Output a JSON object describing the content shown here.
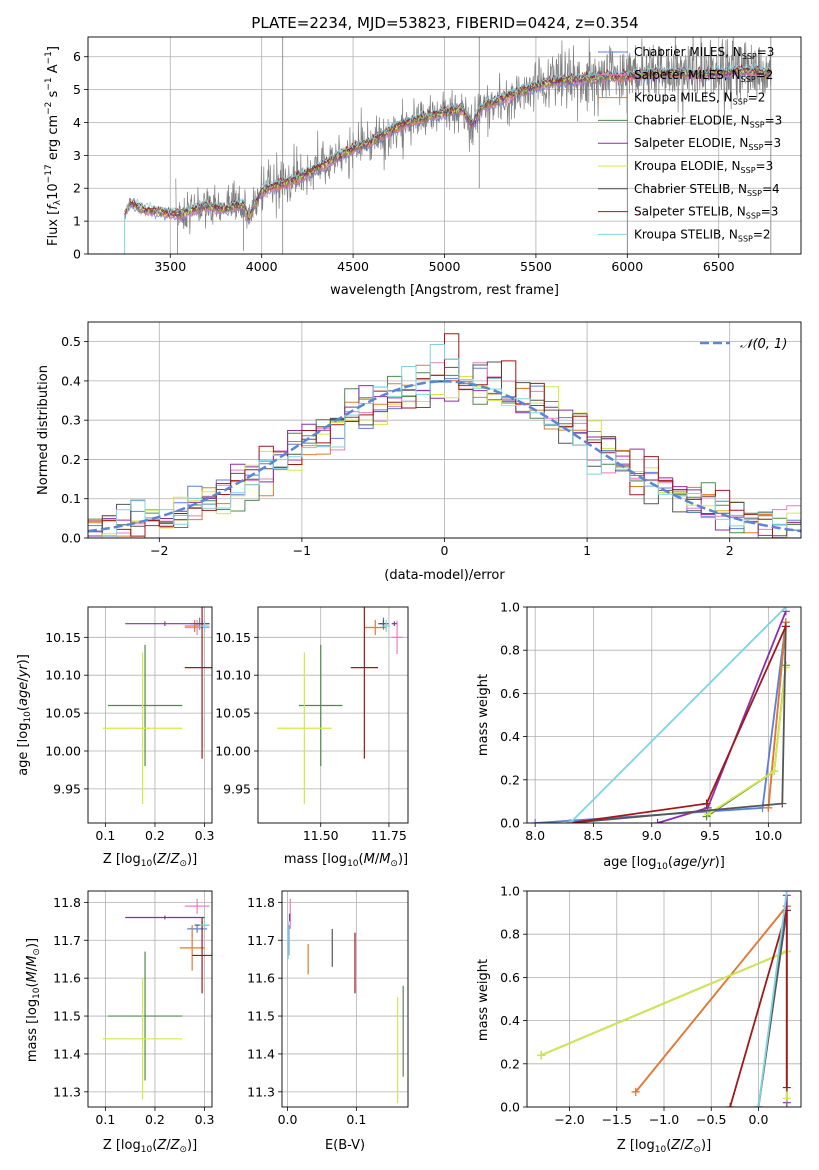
{
  "title": "PLATE=2234, MJD=53823, FIBERID=0424, z=0.354",
  "colors": {
    "Chabrier MILES": "#5b7fd6",
    "Salpeter MILES": "#e87fc4",
    "Kroupa MILES": "#e07b2e",
    "Chabrier ELODIE": "#4f8a4f",
    "Salpeter ELODIE": "#8b2fa8",
    "Kroupa ELODIE": "#d4e84a",
    "Chabrier STELIB": "#555555",
    "Salpeter STELIB": "#a01818",
    "Kroupa STELIB": "#7fd4e0",
    "data": "#7f7f7f",
    "gaussian": "#5b86d6",
    "grid": "#b0b0b0"
  },
  "chart_data": [
    {
      "id": "spectrum",
      "type": "line",
      "xlabel": "wavelength [Angstrom, rest frame]",
      "ylabel": "Flux [f_λ 10^-17 erg cm^-2 s^-1 A^-1]",
      "xlim": [
        3050,
        6950
      ],
      "ylim": [
        0,
        6.6
      ],
      "xticks": [
        3500,
        4000,
        4500,
        5000,
        5500,
        6000,
        6500
      ],
      "yticks": [
        0,
        1,
        2,
        3,
        4,
        5,
        6
      ],
      "legend_loc": "right",
      "legend": [
        {
          "model": "Chabrier MILES",
          "label": "Chabrier MILES, N",
          "n": 3
        },
        {
          "model": "Salpeter MILES",
          "label": "Salpeter MILES, N",
          "n": 2
        },
        {
          "model": "Kroupa MILES",
          "label": "Kroupa MILES, N",
          "n": 2
        },
        {
          "model": "Chabrier ELODIE",
          "label": "Chabrier ELODIE, N",
          "n": 3
        },
        {
          "model": "Salpeter ELODIE",
          "label": "Salpeter ELODIE, N",
          "n": 3
        },
        {
          "model": "Kroupa ELODIE",
          "label": "Kroupa ELODIE, N",
          "n": 3
        },
        {
          "model": "Chabrier STELIB",
          "label": "Chabrier STELIB, N",
          "n": 4
        },
        {
          "model": "Salpeter STELIB",
          "label": "Salpeter STELIB, N",
          "n": 3
        },
        {
          "model": "Kroupa STELIB",
          "label": "Kroupa STELIB, N",
          "n": 2
        }
      ],
      "model_continuum": {
        "x": [
          3250,
          3280,
          3320,
          3360,
          3420,
          3480,
          3540,
          3600,
          3650,
          3700,
          3750,
          3800,
          3850,
          3900,
          3930,
          3970,
          4000,
          4050,
          4100,
          4150,
          4200,
          4300,
          4400,
          4500,
          4600,
          4700,
          4800,
          4900,
          5000,
          5100,
          5150,
          5200,
          5300,
          5400,
          5500,
          5600,
          5700,
          5800,
          5900,
          6000,
          6100,
          6200,
          6300,
          6400,
          6500,
          6600,
          6700,
          6780
        ],
        "y": [
          1.2,
          1.55,
          1.45,
          1.35,
          1.3,
          1.25,
          1.2,
          1.3,
          1.4,
          1.45,
          1.4,
          1.35,
          1.45,
          1.5,
          1.1,
          1.6,
          1.9,
          2.05,
          2.1,
          2.2,
          2.3,
          2.6,
          2.9,
          3.2,
          3.4,
          3.75,
          4.0,
          4.15,
          4.3,
          4.4,
          3.9,
          4.45,
          4.7,
          4.9,
          5.1,
          5.25,
          5.3,
          5.35,
          5.4,
          5.4,
          5.45,
          5.5,
          5.5,
          5.45,
          5.5,
          5.55,
          5.55,
          5.5
        ]
      },
      "data_range": [
        3530,
        6790
      ]
    },
    {
      "id": "residuals",
      "type": "histogram",
      "xlabel": "(data-model)/error",
      "ylabel": "Normed distribution",
      "xlim": [
        -2.5,
        2.5
      ],
      "ylim": [
        0,
        0.55
      ],
      "xticks": [
        -2,
        -1,
        0,
        1,
        2
      ],
      "yticks": [
        0.0,
        0.1,
        0.2,
        0.3,
        0.4,
        0.5
      ],
      "legend_loc": "top-right",
      "legend_label": "𝒩(0, 1)",
      "bin_width": 0.1
    },
    {
      "id": "age-vs-Z",
      "type": "errorbar",
      "xlabel": "Z [log10(Z/Z⊙)]",
      "ylabel": "age [log10(age/yr)]",
      "xlim": [
        0.065,
        0.315
      ],
      "ylim": [
        9.905,
        10.19
      ],
      "xticks": [
        0.1,
        0.2,
        0.3
      ],
      "yticks": [
        9.95,
        10.0,
        10.05,
        10.1,
        10.15
      ],
      "points": [
        {
          "model": "Chabrier MILES",
          "x": 0.29,
          "xerr": 0.02,
          "y": 10.168,
          "yerr": 0.008
        },
        {
          "model": "Salpeter MILES",
          "x": 0.285,
          "xerr": 0.025,
          "y": 10.163,
          "yerr": 0.01
        },
        {
          "model": "Kroupa MILES",
          "x": 0.28,
          "xerr": 0.02,
          "y": 10.165,
          "yerr": 0.008
        },
        {
          "model": "Chabrier ELODIE",
          "x": 0.18,
          "xerr": 0.075,
          "y": 10.06,
          "yerr": 0.08
        },
        {
          "model": "Salpeter ELODIE",
          "x": 0.22,
          "xerr": 0.08,
          "y": 10.168,
          "yerr": 0.003
        },
        {
          "model": "Kroupa ELODIE",
          "x": 0.175,
          "xerr": 0.08,
          "y": 10.03,
          "yerr": 0.1
        },
        {
          "model": "Chabrier STELIB",
          "x": 0.295,
          "xerr": 0.015,
          "y": 10.168,
          "yerr": 0.005
        },
        {
          "model": "Salpeter STELIB",
          "x": 0.295,
          "xerr": 0.035,
          "y": 10.11,
          "yerr": 0.12
        },
        {
          "model": "Kroupa STELIB",
          "x": 0.3,
          "xerr": 0.01,
          "y": 10.165,
          "yerr": 0.008
        }
      ]
    },
    {
      "id": "age-vs-mass",
      "type": "errorbar",
      "xlabel": "mass [log10(M/M⊙)]",
      "ylabel": "",
      "xlim": [
        11.27,
        11.82
      ],
      "ylim": [
        9.905,
        10.19
      ],
      "xticks": [
        11.5,
        11.75
      ],
      "yticks": [
        9.95,
        10.0,
        10.05,
        10.1,
        10.15
      ],
      "points": [
        {
          "model": "Chabrier MILES",
          "x": 11.73,
          "xerr": 0.02,
          "y": 10.168,
          "yerr": 0.008
        },
        {
          "model": "Salpeter MILES",
          "x": 11.78,
          "xerr": 0.02,
          "y": 10.15,
          "yerr": 0.022
        },
        {
          "model": "Kroupa MILES",
          "x": 11.7,
          "xerr": 0.04,
          "y": 10.163,
          "yerr": 0.01
        },
        {
          "model": "Chabrier ELODIE",
          "x": 11.5,
          "xerr": 0.08,
          "y": 10.06,
          "yerr": 0.08
        },
        {
          "model": "Salpeter ELODIE",
          "x": 11.77,
          "xerr": 0.01,
          "y": 10.168,
          "yerr": 0.003
        },
        {
          "model": "Kroupa ELODIE",
          "x": 11.44,
          "xerr": 0.1,
          "y": 10.03,
          "yerr": 0.1
        },
        {
          "model": "Chabrier STELIB",
          "x": 11.73,
          "xerr": 0.015,
          "y": 10.168,
          "yerr": 0.005
        },
        {
          "model": "Salpeter STELIB",
          "x": 11.66,
          "xerr": 0.05,
          "y": 10.11,
          "yerr": 0.12
        },
        {
          "model": "Kroupa STELIB",
          "x": 11.74,
          "xerr": 0.015,
          "y": 10.165,
          "yerr": 0.008
        }
      ]
    },
    {
      "id": "weight-vs-age",
      "type": "line",
      "xlabel": "age [log10(age/yr)]",
      "ylabel": "mass weight",
      "xlim": [
        7.93,
        10.28
      ],
      "ylim": [
        0,
        1
      ],
      "xticks": [
        8.0,
        8.5,
        9.0,
        9.5,
        10.0
      ],
      "yticks": [
        0.0,
        0.2,
        0.4,
        0.6,
        0.8,
        1.0
      ],
      "series": [
        {
          "model": "Chabrier MILES",
          "x": [
            8.0,
            9.95,
            10.15
          ],
          "y": [
            0.0,
            0.07,
            0.93
          ]
        },
        {
          "model": "Salpeter MILES",
          "x": [
            10.0,
            10.15
          ],
          "y": [
            0.07,
            0.93
          ]
        },
        {
          "model": "Kroupa MILES",
          "x": [
            10.0,
            10.15
          ],
          "y": [
            0.07,
            0.93
          ]
        },
        {
          "model": "Chabrier ELODIE",
          "x": [
            9.47,
            10.05,
            10.15
          ],
          "y": [
            0.03,
            0.24,
            0.73
          ]
        },
        {
          "model": "Salpeter ELODIE",
          "x": [
            9.05,
            9.48,
            10.15
          ],
          "y": [
            0.0,
            0.07,
            0.98
          ]
        },
        {
          "model": "Kroupa ELODIE",
          "x": [
            9.48,
            10.05,
            10.15
          ],
          "y": [
            0.04,
            0.24,
            0.72
          ]
        },
        {
          "model": "Chabrier STELIB",
          "x": [
            8.3,
            10.12,
            10.15
          ],
          "y": [
            0.0,
            0.09,
            0.91
          ]
        },
        {
          "model": "Salpeter STELIB",
          "x": [
            8.3,
            9.47,
            10.15
          ],
          "y": [
            0.0,
            0.09,
            0.91
          ]
        },
        {
          "model": "Kroupa STELIB",
          "x": [
            8.3,
            10.15
          ],
          "y": [
            0.0,
            1.0
          ]
        }
      ]
    },
    {
      "id": "mass-vs-Z",
      "type": "errorbar",
      "xlabel": "Z [log10(Z/Z⊙)]",
      "ylabel": "mass [log10(M/M⊙)]",
      "xlim": [
        0.065,
        0.315
      ],
      "ylim": [
        11.26,
        11.83
      ],
      "xticks": [
        0.1,
        0.2,
        0.3
      ],
      "yticks": [
        11.3,
        11.4,
        11.5,
        11.6,
        11.7,
        11.8
      ],
      "points": [
        {
          "model": "Chabrier MILES",
          "x": 0.285,
          "xerr": 0.02,
          "y": 11.73,
          "yerr": 0.01
        },
        {
          "model": "Salpeter MILES",
          "x": 0.285,
          "xerr": 0.025,
          "y": 11.79,
          "yerr": 0.02
        },
        {
          "model": "Kroupa MILES",
          "x": 0.275,
          "xerr": 0.025,
          "y": 11.68,
          "yerr": 0.06
        },
        {
          "model": "Chabrier ELODIE",
          "x": 0.18,
          "xerr": 0.075,
          "y": 11.5,
          "yerr": 0.17
        },
        {
          "model": "Salpeter ELODIE",
          "x": 0.22,
          "xerr": 0.08,
          "y": 11.76,
          "yerr": 0.005
        },
        {
          "model": "Kroupa ELODIE",
          "x": 0.175,
          "xerr": 0.08,
          "y": 11.44,
          "yerr": 0.16
        },
        {
          "model": "Chabrier STELIB",
          "x": 0.295,
          "xerr": 0.015,
          "y": 11.74,
          "yerr": 0.01
        },
        {
          "model": "Salpeter STELIB",
          "x": 0.295,
          "xerr": 0.02,
          "y": 11.66,
          "yerr": 0.1
        },
        {
          "model": "Kroupa STELIB",
          "x": 0.3,
          "xerr": 0.01,
          "y": 11.74,
          "yerr": 0.01
        }
      ]
    },
    {
      "id": "mass-vs-EBV",
      "type": "errorbar",
      "xlabel": "E(B-V)",
      "ylabel": "",
      "xlim": [
        -0.008,
        0.175
      ],
      "ylim": [
        11.26,
        11.83
      ],
      "xticks": [
        0.0,
        0.1
      ],
      "yticks": [
        11.3,
        11.4,
        11.5,
        11.6,
        11.7,
        11.8
      ],
      "points": [
        {
          "model": "Chabrier MILES",
          "x": 0.002,
          "xerr": 0,
          "y": 11.7,
          "yerr": 0.04
        },
        {
          "model": "Salpeter MILES",
          "x": 0.004,
          "xerr": 0,
          "y": 11.77,
          "yerr": 0.04
        },
        {
          "model": "Kroupa MILES",
          "x": 0.03,
          "xerr": 0,
          "y": 11.65,
          "yerr": 0.04
        },
        {
          "model": "Chabrier ELODIE",
          "x": 0.168,
          "xerr": 0,
          "y": 11.46,
          "yerr": 0.12
        },
        {
          "model": "Salpeter ELODIE",
          "x": 0.003,
          "xerr": 0,
          "y": 11.76,
          "yerr": 0.01
        },
        {
          "model": "Kroupa ELODIE",
          "x": 0.16,
          "xerr": 0,
          "y": 11.41,
          "yerr": 0.14
        },
        {
          "model": "Chabrier STELIB",
          "x": 0.065,
          "xerr": 0,
          "y": 11.68,
          "yerr": 0.05
        },
        {
          "model": "Salpeter STELIB",
          "x": 0.098,
          "xerr": 0,
          "y": 11.64,
          "yerr": 0.08
        },
        {
          "model": "Kroupa STELIB",
          "x": 0.001,
          "xerr": 0,
          "y": 11.7,
          "yerr": 0.05
        }
      ]
    },
    {
      "id": "weight-vs-Z",
      "type": "line",
      "xlabel": "Z [log10(Z/Z⊙)]",
      "ylabel": "mass weight",
      "xlim": [
        -2.45,
        0.45
      ],
      "ylim": [
        0,
        1
      ],
      "xticks": [
        -2.0,
        -1.5,
        -1.0,
        -0.5,
        0.0
      ],
      "yticks": [
        0.0,
        0.2,
        0.4,
        0.6,
        0.8,
        1.0
      ],
      "series": [
        {
          "model": "Chabrier MILES",
          "x": [
            0.0,
            0.3
          ],
          "y": [
            0.0,
            0.93
          ]
        },
        {
          "model": "Salpeter MILES",
          "x": [
            -1.3,
            0.3
          ],
          "y": [
            0.07,
            0.93
          ]
        },
        {
          "model": "Kroupa MILES",
          "x": [
            -1.3,
            0.3
          ],
          "y": [
            0.07,
            0.93
          ]
        },
        {
          "model": "Chabrier ELODIE",
          "x": [
            -2.3,
            0.3
          ],
          "y": [
            0.24,
            0.72
          ]
        },
        {
          "model": "Salpeter ELODIE",
          "x": [
            0.3,
            0.3
          ],
          "y": [
            0.02,
            0.98
          ]
        },
        {
          "model": "Kroupa ELODIE",
          "x": [
            -2.3,
            0.3,
            0.3
          ],
          "y": [
            0.24,
            0.72,
            0.04
          ]
        },
        {
          "model": "Chabrier STELIB",
          "x": [
            0.0,
            0.3
          ],
          "y": [
            0.0,
            0.91
          ]
        },
        {
          "model": "Salpeter STELIB",
          "x": [
            -0.3,
            0.3,
            0.3
          ],
          "y": [
            0.0,
            0.91,
            0.09
          ]
        },
        {
          "model": "Kroupa STELIB",
          "x": [
            0.0,
            0.3
          ],
          "y": [
            0.0,
            1.0
          ]
        }
      ]
    }
  ]
}
